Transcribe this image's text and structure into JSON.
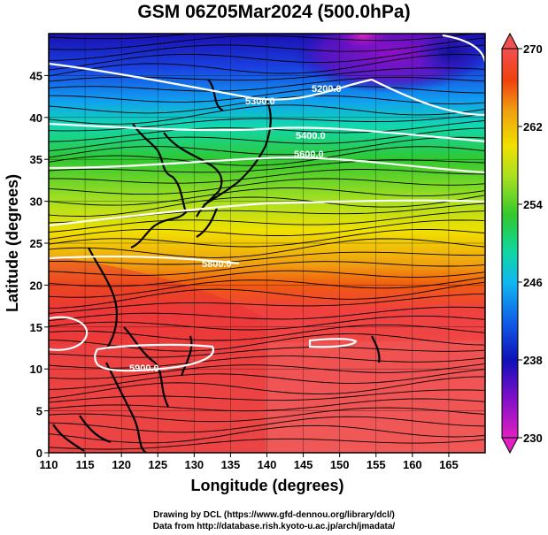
{
  "title": "GSM 06Z05Mar2024 (500.0hPa)",
  "x_axis": {
    "label": "Longitude (degrees)",
    "ticks": [
      "110",
      "115",
      "120",
      "125",
      "130",
      "135",
      "140",
      "145",
      "150",
      "155",
      "160",
      "165"
    ]
  },
  "y_axis": {
    "label": "Latitude  (degrees)",
    "ticks": [
      "0",
      "5",
      "10",
      "15",
      "20",
      "25",
      "30",
      "35",
      "40",
      "45"
    ]
  },
  "colorbar": {
    "ticks": [
      "230",
      "238",
      "246",
      "254",
      "262",
      "270"
    ],
    "range": [
      230,
      270
    ],
    "colors": [
      "#e020c0",
      "#8010c8",
      "#1010b8",
      "#1060e8",
      "#10b8f0",
      "#10d8a0",
      "#30c830",
      "#a8e020",
      "#f0e000",
      "#f0a010",
      "#f04010",
      "#f05050"
    ]
  },
  "contours": {
    "labels": [
      "5200.0",
      "5300.0",
      "5400.0",
      "5600.0",
      "5800.0",
      "5900.0"
    ]
  },
  "credits": {
    "line1": "Drawing by DCL (https://www.gfd-dennou.org/library/dcl/)",
    "line2": "Data from http://database.rish.kyoto-u.ac.jp/arch/jmadata/"
  }
}
